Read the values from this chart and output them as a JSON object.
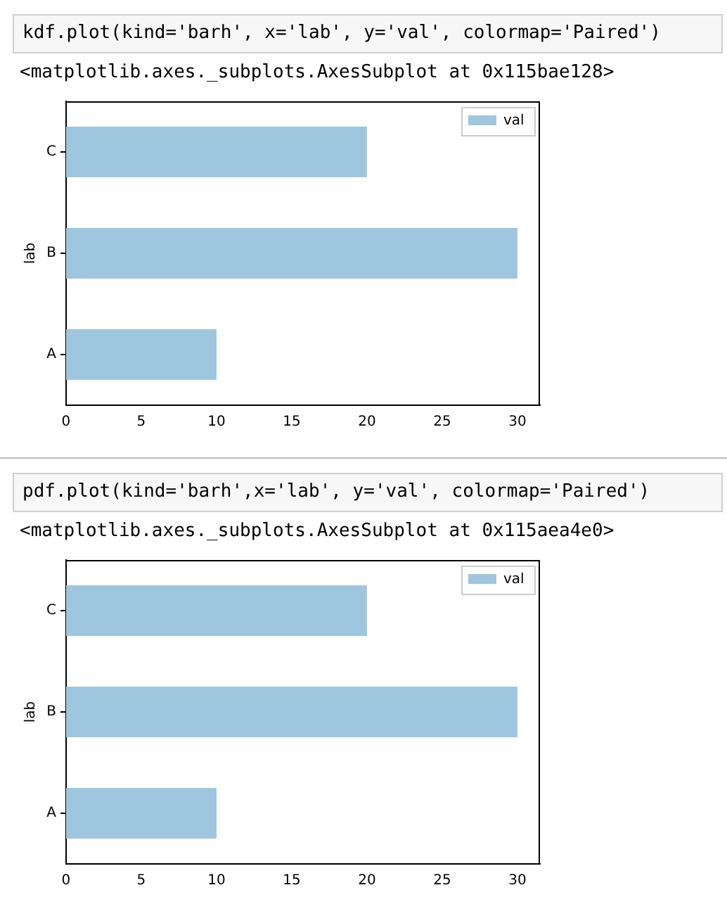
{
  "chart_data": [
    {
      "type": "bar",
      "orientation": "horizontal",
      "title": "kdf.plot(kind='barh', x='lab', y='val', colormap='Paired')",
      "subtitle": "<matplotlib.axes._subplots.AxesSubplot at 0x115bae128>",
      "ylabel": "lab",
      "categories": [
        "C",
        "B",
        "A"
      ],
      "series": [
        {
          "name": "val",
          "color": "#9ec6df",
          "values": [
            20,
            30,
            10
          ]
        }
      ],
      "xlim": [
        0,
        31.5
      ],
      "xticks": [
        0,
        5,
        10,
        15,
        20,
        25,
        30
      ],
      "grid": false,
      "legend": "top right"
    },
    {
      "type": "bar",
      "orientation": "horizontal",
      "title": "pdf.plot(kind='barh',x='lab', y='val', colormap='Paired')",
      "subtitle": "<matplotlib.axes._subplots.AxesSubplot at 0x115aea4e0>",
      "ylabel": "lab",
      "categories": [
        "C",
        "B",
        "A"
      ],
      "series": [
        {
          "name": "val",
          "color": "#9ec6df",
          "values": [
            20,
            30,
            10
          ]
        }
      ],
      "xlim": [
        0,
        31.5
      ],
      "xticks": [
        0,
        5,
        10,
        15,
        20,
        25,
        30
      ],
      "grid": false,
      "legend": "top right"
    }
  ]
}
